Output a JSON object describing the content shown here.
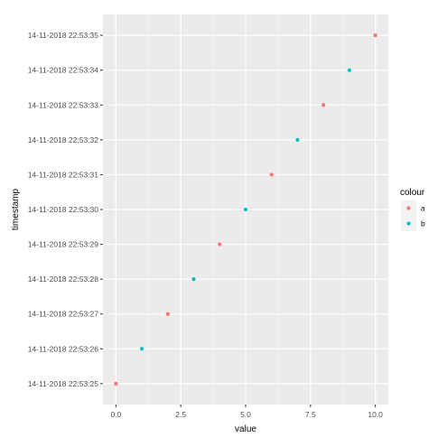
{
  "chart_data": {
    "type": "scatter",
    "xlabel": "value",
    "ylabel": "timestamp",
    "xlim": [
      -0.5,
      10.5
    ],
    "x_ticks": [
      "0.0",
      "2.5",
      "5.0",
      "7.5",
      "10.0"
    ],
    "x_tick_values": [
      0,
      2.5,
      5,
      7.5,
      10
    ],
    "y_categories": [
      "14-11-2018 22:53:25",
      "14-11-2018 22:53:26",
      "14-11-2018 22:53:27",
      "14-11-2018 22:53:28",
      "14-11-2018 22:53:29",
      "14-11-2018 22:53:30",
      "14-11-2018 22:53:31",
      "14-11-2018 22:53:32",
      "14-11-2018 22:53:33",
      "14-11-2018 22:53:34",
      "14-11-2018 22:53:35"
    ],
    "series": [
      {
        "name": "a",
        "color": "#f8766d",
        "points": [
          {
            "x": 0,
            "y": "14-11-2018 22:53:25"
          },
          {
            "x": 2,
            "y": "14-11-2018 22:53:27"
          },
          {
            "x": 4,
            "y": "14-11-2018 22:53:29"
          },
          {
            "x": 6,
            "y": "14-11-2018 22:53:31"
          },
          {
            "x": 8,
            "y": "14-11-2018 22:53:33"
          },
          {
            "x": 10,
            "y": "14-11-2018 22:53:35"
          }
        ]
      },
      {
        "name": "b",
        "color": "#00bfc4",
        "points": [
          {
            "x": 1,
            "y": "14-11-2018 22:53:26"
          },
          {
            "x": 3,
            "y": "14-11-2018 22:53:28"
          },
          {
            "x": 5,
            "y": "14-11-2018 22:53:30"
          },
          {
            "x": 7,
            "y": "14-11-2018 22:53:32"
          },
          {
            "x": 9,
            "y": "14-11-2018 22:53:34"
          }
        ]
      }
    ],
    "legend": {
      "title": "colour",
      "position": "right"
    },
    "grid": true,
    "panel_background": "#ebebeb",
    "grid_color": "#ffffff"
  }
}
